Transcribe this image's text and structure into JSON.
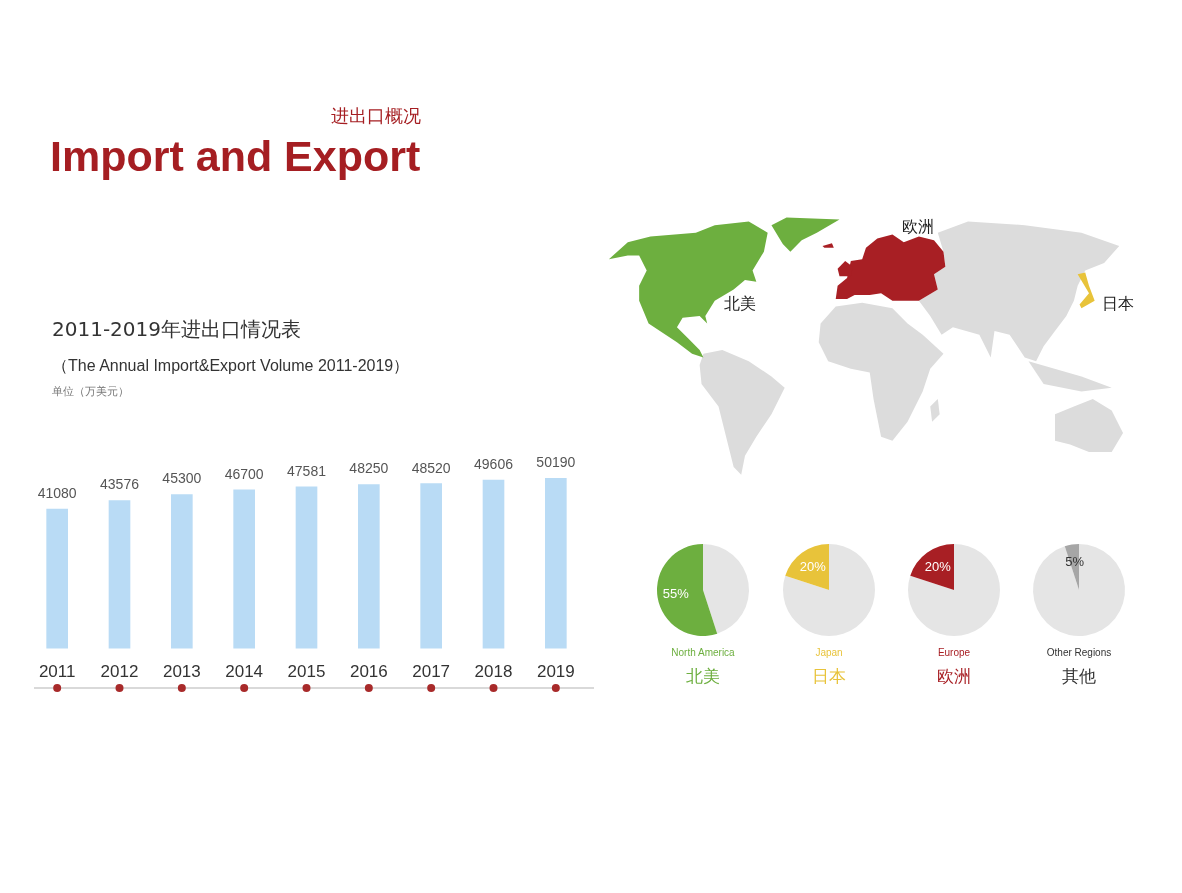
{
  "chart_data": [
    {
      "type": "other",
      "title": "Import and Export",
      "subtitle": "进出口概况"
    },
    {
      "type": "bar",
      "title": "2011-2019年进出口情况表",
      "subtitle": "（The Annual Import&Export Volume 2011-2019）",
      "annotations": [
        "单位（万美元）"
      ],
      "categories": [
        "2011",
        "2012",
        "2013",
        "2014",
        "2015",
        "2016",
        "2017",
        "2018",
        "2019"
      ],
      "values": [
        41080,
        43576,
        45300,
        46700,
        47581,
        48250,
        48520,
        49606,
        50190
      ],
      "color": "#b9dbf5",
      "data_labels": true,
      "tick_labels": "x"
    },
    {
      "type": "other",
      "annotations": [
        "欧洲",
        "北美",
        "日本"
      ]
    },
    {
      "type": "pie",
      "title": "North America",
      "subtitle": "北美",
      "categories": [
        null,
        null
      ],
      "values": [
        45,
        55
      ],
      "colors": [
        "#e5e5e5",
        "#6daf3f"
      ],
      "value_labels": [
        null,
        "55%"
      ]
    },
    {
      "type": "pie",
      "title": "Japan",
      "subtitle": "日本",
      "categories": [
        null,
        null
      ],
      "values": [
        80,
        20
      ],
      "colors": [
        "#e5e5e5",
        "#e8c33a"
      ],
      "value_labels": [
        null,
        "20%"
      ]
    },
    {
      "type": "pie",
      "title": "Europe",
      "subtitle": "欧洲",
      "categories": [
        null,
        null
      ],
      "values": [
        80,
        20
      ],
      "colors": [
        "#e5e5e5",
        "#a81f24"
      ],
      "value_labels": [
        null,
        "20%"
      ]
    },
    {
      "type": "pie",
      "title": "Other Regions",
      "subtitle": "其他",
      "categories": [
        null,
        null
      ],
      "values": [
        95,
        5
      ],
      "colors": [
        "#e5e5e5",
        "#a6a6a6"
      ],
      "value_labels": [
        null,
        "5%"
      ]
    }
  ]
}
